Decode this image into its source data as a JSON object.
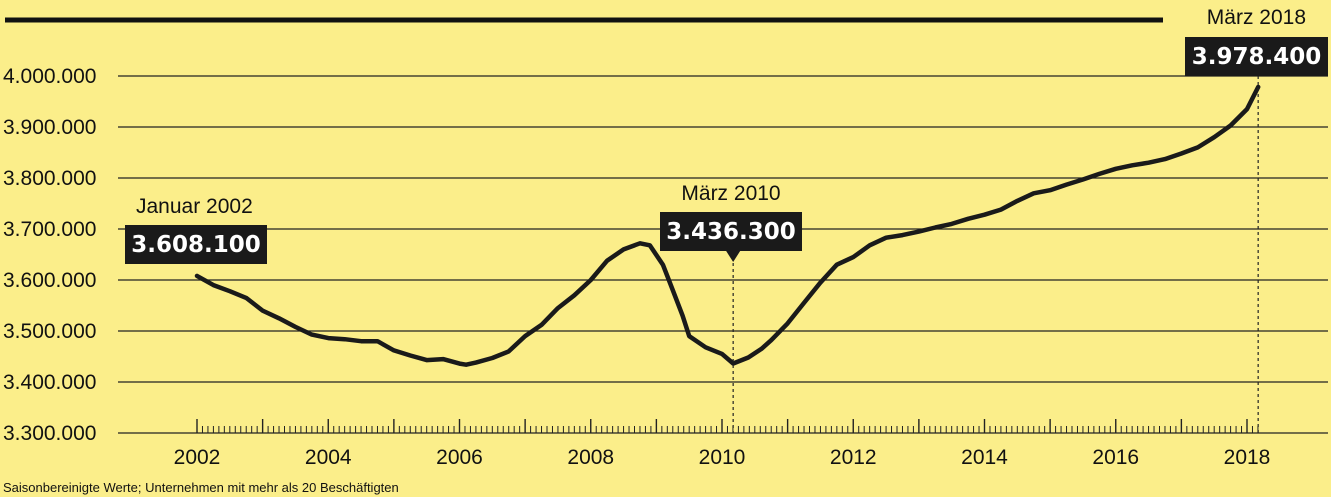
{
  "chart_data": {
    "type": "line",
    "title": "",
    "xlabel": "",
    "ylabel": "",
    "x_ticks": [
      "2002",
      "2004",
      "2006",
      "2008",
      "2010",
      "2012",
      "2014",
      "2016",
      "2018"
    ],
    "y_ticks": [
      "3.300.000",
      "3.400.000",
      "3.500.000",
      "3.600.000",
      "3.700.000",
      "3.800.000",
      "3.900.000",
      "4.000.000"
    ],
    "ylim": [
      3300000,
      4000000
    ],
    "xlim": [
      2002.0,
      2018.5
    ],
    "grid": "horizontal",
    "series": [
      {
        "x": [
          2002.0,
          2002.25,
          2002.5,
          2002.75,
          2003.0,
          2003.25,
          2003.5,
          2003.75,
          2004.0,
          2004.25,
          2004.5,
          2004.75,
          2005.0,
          2005.25,
          2005.5,
          2005.75,
          2006.0,
          2006.1,
          2006.25,
          2006.5,
          2006.75,
          2007.0,
          2007.25,
          2007.5,
          2007.75,
          2008.0,
          2008.25,
          2008.5,
          2008.75,
          2008.9,
          2009.1,
          2009.25,
          2009.4,
          2009.5,
          2009.75,
          2010.0,
          2010.17,
          2010.4,
          2010.6,
          2010.75,
          2011.0,
          2011.25,
          2011.5,
          2011.75,
          2012.0,
          2012.25,
          2012.5,
          2012.75,
          2013.0,
          2013.25,
          2013.5,
          2013.75,
          2014.0,
          2014.25,
          2014.5,
          2014.75,
          2015.0,
          2015.25,
          2015.5,
          2015.75,
          2016.0,
          2016.25,
          2016.5,
          2016.75,
          2017.0,
          2017.25,
          2017.5,
          2017.75,
          2018.0,
          2018.17
        ],
        "values": [
          3608100,
          3590000,
          3578000,
          3565000,
          3540000,
          3525000,
          3508000,
          3493000,
          3486000,
          3484000,
          3480000,
          3480000,
          3462000,
          3452000,
          3443000,
          3445000,
          3436000,
          3434000,
          3438000,
          3447000,
          3460000,
          3490000,
          3512000,
          3545000,
          3570000,
          3600000,
          3638000,
          3660000,
          3672000,
          3668000,
          3630000,
          3580000,
          3530000,
          3490000,
          3468000,
          3455000,
          3436300,
          3448000,
          3465000,
          3482000,
          3515000,
          3555000,
          3595000,
          3630000,
          3645000,
          3668000,
          3683000,
          3688000,
          3695000,
          3703000,
          3710000,
          3720000,
          3728000,
          3738000,
          3755000,
          3770000,
          3776000,
          3787000,
          3797000,
          3808000,
          3818000,
          3825000,
          3830000,
          3837000,
          3848000,
          3860000,
          3880000,
          3903000,
          3935000,
          3978400
        ]
      }
    ],
    "annotations": [
      {
        "label": "Januar 2002",
        "value_label": "3.608.100",
        "x": 2002.0,
        "y": 3608100
      },
      {
        "label": "März 2010",
        "value_label": "3.436.300",
        "x": 2010.17,
        "y": 3436300
      },
      {
        "label": "März 2018",
        "value_label": "3.978.400",
        "x": 2018.17,
        "y": 3978400
      }
    ],
    "footnote": "Saisonbereinigte Werte; Unternehmen mit mehr als 20 Beschäftigten"
  },
  "colors": {
    "background": "#fbee8a",
    "line": "#1a1a1a",
    "box": "#1a1a1a",
    "box_text": "#ffffff"
  }
}
